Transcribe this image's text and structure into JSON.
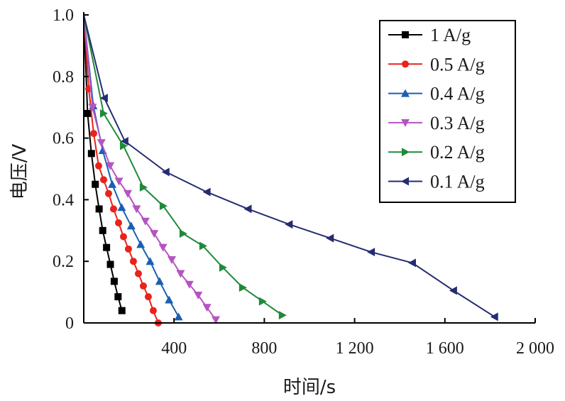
{
  "chart_data": {
    "type": "line",
    "xlabel": "时间/s",
    "ylabel": "电压/V",
    "xlim": [
      0,
      2000
    ],
    "ylim": [
      0,
      1.0
    ],
    "x_ticks": [
      {
        "value": 400,
        "label": "400"
      },
      {
        "value": 800,
        "label": "800"
      },
      {
        "value": 1200,
        "label": "1 200"
      },
      {
        "value": 1600,
        "label": "1 600"
      },
      {
        "value": 2000,
        "label": "2 000"
      }
    ],
    "y_ticks": [
      {
        "value": 0,
        "label": "0"
      },
      {
        "value": 0.2,
        "label": "0.2"
      },
      {
        "value": 0.4,
        "label": "0.4"
      },
      {
        "value": 0.6,
        "label": "0.6"
      },
      {
        "value": 0.8,
        "label": "0.8"
      },
      {
        "value": 1.0,
        "label": "1.0"
      }
    ],
    "grid": false,
    "legend_position": "top-right",
    "series": [
      {
        "name": "1 A/g",
        "color": "#000000",
        "marker": "square",
        "x": [
          0,
          17,
          34,
          51,
          68,
          84,
          101,
          118,
          135,
          152,
          169
        ],
        "y": [
          1.0,
          0.68,
          0.55,
          0.45,
          0.37,
          0.3,
          0.245,
          0.19,
          0.135,
          0.085,
          0.04
        ]
      },
      {
        "name": "0.5 A/g",
        "color": "#e8231b",
        "marker": "circle",
        "x": [
          0,
          22,
          44,
          66,
          88,
          110,
          132,
          154,
          176,
          198,
          220,
          242,
          264,
          286,
          308,
          330
        ],
        "y": [
          1.0,
          0.76,
          0.615,
          0.51,
          0.465,
          0.42,
          0.37,
          0.325,
          0.28,
          0.24,
          0.2,
          0.16,
          0.12,
          0.085,
          0.04,
          0.0
        ]
      },
      {
        "name": "0.4 A/g",
        "color": "#1a5fb4",
        "marker": "triangle-up",
        "x": [
          0,
          42,
          84,
          126,
          168,
          210,
          252,
          294,
          336,
          378,
          420
        ],
        "y": [
          1.0,
          0.705,
          0.56,
          0.45,
          0.375,
          0.315,
          0.255,
          0.2,
          0.135,
          0.075,
          0.02
        ]
      },
      {
        "name": "0.3 A/g",
        "color": "#b554c2",
        "marker": "triangle-down",
        "x": [
          0,
          39,
          78,
          117,
          156,
          195,
          234,
          273,
          312,
          351,
          390,
          429,
          468,
          507,
          546,
          585
        ],
        "y": [
          1.0,
          0.7,
          0.585,
          0.51,
          0.46,
          0.42,
          0.37,
          0.33,
          0.29,
          0.245,
          0.205,
          0.16,
          0.125,
          0.09,
          0.05,
          0.01
        ]
      },
      {
        "name": "0.2 A/g",
        "color": "#1f8a3a",
        "marker": "triangle-right",
        "x": [
          0,
          88,
          176,
          264,
          352,
          440,
          528,
          616,
          704,
          792,
          880
        ],
        "y": [
          1.0,
          0.68,
          0.575,
          0.44,
          0.38,
          0.29,
          0.25,
          0.18,
          0.115,
          0.07,
          0.025
        ]
      },
      {
        "name": "0.1 A/g",
        "color": "#252c70",
        "marker": "triangle-left",
        "x": [
          0,
          91,
          182,
          364,
          546,
          728,
          910,
          1092,
          1274,
          1456,
          1638,
          1820
        ],
        "y": [
          1.0,
          0.73,
          0.59,
          0.49,
          0.425,
          0.37,
          0.32,
          0.275,
          0.23,
          0.195,
          0.105,
          0.02
        ]
      }
    ]
  }
}
